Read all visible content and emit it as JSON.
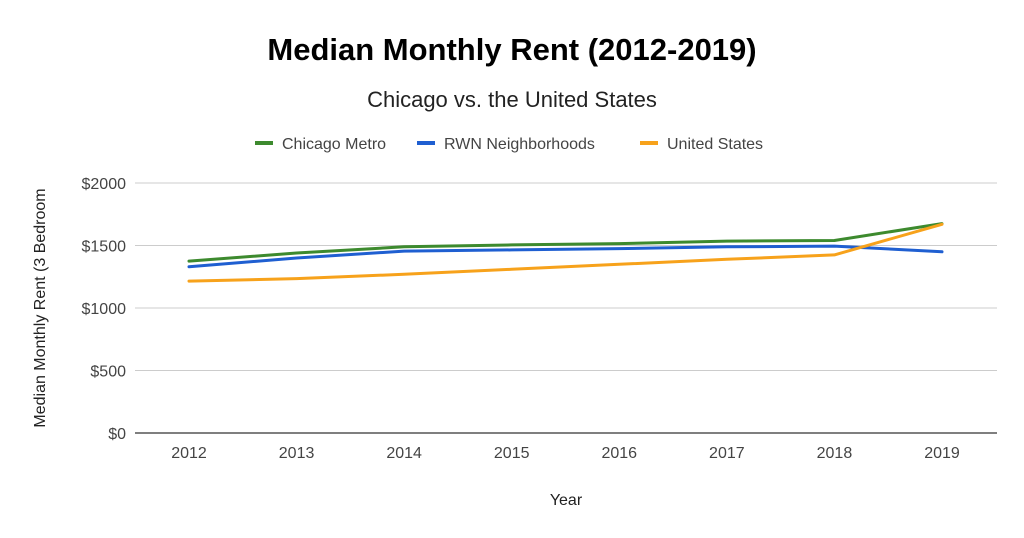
{
  "chart_data": {
    "type": "line",
    "title": "Median Monthly Rent (2012-2019)",
    "subtitle": "Chicago vs. the United States",
    "xlabel": "Year",
    "ylabel": "Median Monthly Rent (3 Bedroom",
    "categories": [
      "2012",
      "2013",
      "2014",
      "2015",
      "2016",
      "2017",
      "2018",
      "2019"
    ],
    "ylim": [
      0,
      2000
    ],
    "yticks": [
      0,
      500,
      1000,
      1500,
      2000
    ],
    "ytick_labels": [
      "$0",
      "$500",
      "$1000",
      "$1500",
      "$2000"
    ],
    "grid": true,
    "legend_position": "top",
    "series": [
      {
        "name": "Chicago Metro",
        "color": "#3d8a2e",
        "values": [
          1375,
          1440,
          1490,
          1505,
          1515,
          1535,
          1540,
          1675
        ]
      },
      {
        "name": "RWN Neighborhoods",
        "color": "#1f5fd1",
        "values": [
          1330,
          1400,
          1455,
          1465,
          1475,
          1490,
          1495,
          1450
        ]
      },
      {
        "name": "United States",
        "color": "#f7a21b",
        "values": [
          1215,
          1235,
          1270,
          1310,
          1350,
          1390,
          1425,
          1670
        ]
      }
    ]
  }
}
